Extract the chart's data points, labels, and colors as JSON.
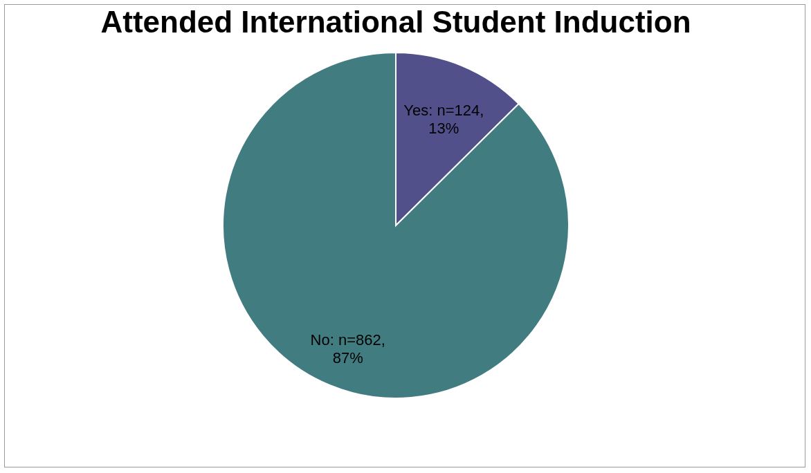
{
  "chart_data": {
    "type": "pie",
    "title": "Attended International Student Induction",
    "categories": [
      "Yes",
      "No"
    ],
    "values": [
      124,
      862
    ],
    "colors": [
      "#52508a",
      "#417c80"
    ],
    "value_labels": [
      "n=124, 13%",
      "n=862, 87%"
    ],
    "legend": false
  }
}
